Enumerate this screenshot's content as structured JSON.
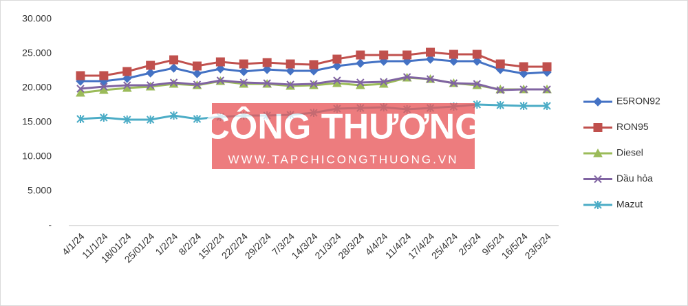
{
  "chart_data": {
    "type": "line",
    "categories": [
      "4/1/24",
      "11/1/24",
      "18/01/24",
      "25/01/24",
      "1/2/24",
      "8/2/24",
      "15/2/24",
      "22/2/24",
      "29/2/24",
      "7/3/24",
      "14/3/24",
      "21/3/24",
      "28/3/24",
      "4/4/24",
      "11/4/24",
      "17/4/24",
      "25/4/24",
      "2/5/24",
      "9/5/24",
      "16/5/24",
      "23/5/24"
    ],
    "series": [
      {
        "name": "E5RON92",
        "color": "#4472c4",
        "marker": "diamond",
        "values": [
          21000,
          21000,
          21400,
          22200,
          22900,
          22100,
          22800,
          22400,
          22700,
          22500,
          22500,
          23200,
          23600,
          23900,
          23900,
          24200,
          23900,
          23900,
          22700,
          22100,
          22300
        ]
      },
      {
        "name": "RON95",
        "color": "#c0504d",
        "marker": "square",
        "values": [
          21800,
          21800,
          22400,
          23300,
          24100,
          23200,
          23800,
          23500,
          23700,
          23500,
          23400,
          24200,
          24800,
          24800,
          24800,
          25200,
          24900,
          24900,
          23500,
          23100,
          23100
        ]
      },
      {
        "name": "Diesel",
        "color": "#9bbb59",
        "marker": "triangle",
        "values": [
          19300,
          19700,
          20000,
          20200,
          20600,
          20400,
          21000,
          20600,
          20600,
          20300,
          20400,
          20700,
          20400,
          20600,
          21500,
          21300,
          20700,
          20400,
          19800,
          19800,
          19800
        ]
      },
      {
        "name": "Dầu hỏa",
        "color": "#8064a2",
        "marker": "x",
        "values": [
          19900,
          20200,
          20400,
          20400,
          20800,
          20500,
          21100,
          20800,
          20700,
          20500,
          20600,
          21100,
          20800,
          20900,
          21600,
          21300,
          20700,
          20600,
          19700,
          19800,
          19800
        ]
      },
      {
        "name": "Mazut",
        "color": "#4bacc6",
        "marker": "star",
        "values": [
          15500,
          15700,
          15400,
          15400,
          16000,
          15500,
          15800,
          16000,
          16000,
          16100,
          16400,
          17000,
          17100,
          17200,
          16900,
          17100,
          17300,
          17600,
          17500,
          17400,
          17400
        ]
      }
    ],
    "ylim": [
      0,
      30000
    ],
    "yticks": [
      {
        "value": 0,
        "label": "-"
      },
      {
        "value": 5000,
        "label": "5.000"
      },
      {
        "value": 10000,
        "label": "10.000"
      },
      {
        "value": 15000,
        "label": "15.000"
      },
      {
        "value": 20000,
        "label": "20.000"
      },
      {
        "value": 25000,
        "label": "25.000"
      },
      {
        "value": 30000,
        "label": "30.000"
      }
    ],
    "grid": false,
    "legend": "right",
    "watermark": {
      "title": "CÔNG THƯƠNG",
      "url": "WWW.TAPCHICONGTHUONG.VN"
    }
  }
}
